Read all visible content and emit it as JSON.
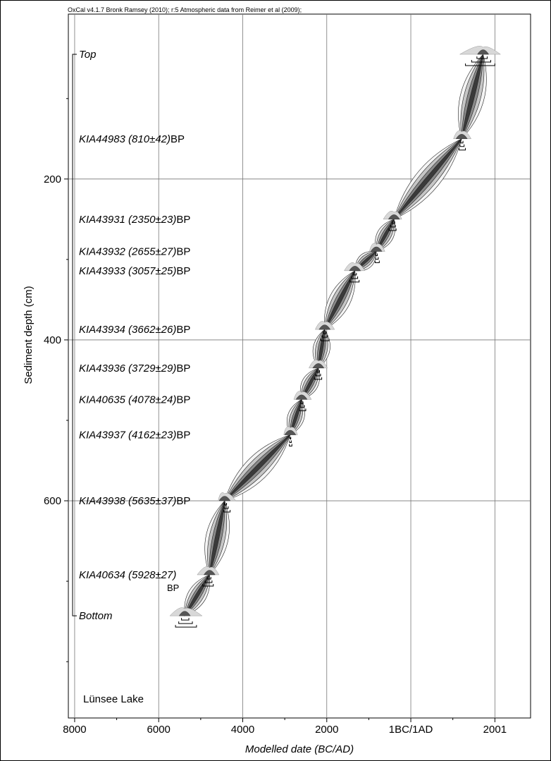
{
  "header_note": "OxCal v4.1.7 Bronk Ramsey (2010); r:5 Atmospheric data from Reimer et al (2009);",
  "chart_data": {
    "type": "age-depth-model",
    "xlabel": "Modelled date (BC/AD)",
    "ylabel": "Sediment depth (cm)",
    "x_ticks": [
      {
        "value": -8000,
        "label": "8000"
      },
      {
        "value": -6000,
        "label": "6000"
      },
      {
        "value": -4000,
        "label": "4000"
      },
      {
        "value": -2000,
        "label": "2000"
      },
      {
        "value": 0,
        "label": "1BC/1AD"
      },
      {
        "value": 2001,
        "label": "2001"
      }
    ],
    "y_ticks": [
      200,
      400,
      600
    ],
    "xlim": [
      -8150,
      2850
    ],
    "ylim": [
      -5,
      870
    ],
    "grid": true,
    "site_label": "Lünsee Lake",
    "samples": [
      {
        "name": "Top",
        "age": "",
        "unit": "",
        "depth": 45,
        "date": 1720,
        "range": [
          1300,
          2000
        ]
      },
      {
        "name": "KIA44983",
        "age": "(810±42)",
        "unit": "BP",
        "depth": 150,
        "date": 1210,
        "range": [
          1150,
          1300
        ]
      },
      {
        "name": "KIA43931",
        "age": "(2350±23)",
        "unit": "BP",
        "depth": 250,
        "date": -400,
        "range": [
          -520,
          -350
        ]
      },
      {
        "name": "KIA43932",
        "age": "(2655±27)",
        "unit": "BP",
        "depth": 290,
        "date": -820,
        "range": [
          -850,
          -750
        ]
      },
      {
        "name": "KIA43933",
        "age": "(3057±25)",
        "unit": "BP",
        "depth": 314,
        "date": -1330,
        "range": [
          -1450,
          -1230
        ]
      },
      {
        "name": "KIA43934",
        "age": "(3662±26)",
        "unit": "BP",
        "depth": 387,
        "date": -2050,
        "range": [
          -2140,
          -1950
        ]
      },
      {
        "name": "KIA43936",
        "age": "(3729±29)",
        "unit": "BP",
        "depth": 435,
        "date": -2200,
        "range": [
          -2290,
          -2120
        ]
      },
      {
        "name": "KIA40635",
        "age": "(4078±24)",
        "unit": "BP",
        "depth": 474,
        "date": -2600,
        "range": [
          -2650,
          -2500
        ]
      },
      {
        "name": "KIA43937",
        "age": "(4162±23)",
        "unit": "BP",
        "depth": 518,
        "date": -2870,
        "range": [
          -2890,
          -2830
        ]
      },
      {
        "name": "KIA43938",
        "age": "(5635±37)",
        "unit": "BP",
        "depth": 600,
        "date": -4430,
        "range": [
          -4450,
          -4300
        ]
      },
      {
        "name": "KIA40634",
        "age": "(5928±27)",
        "unit": "BP",
        "depth": 692,
        "date": -4790,
        "range": [
          -4950,
          -4700
        ]
      },
      {
        "name": "Bottom",
        "age": "",
        "unit": "",
        "depth": 743,
        "date": -5380,
        "range": [
          -5600,
          -5100
        ]
      }
    ]
  }
}
